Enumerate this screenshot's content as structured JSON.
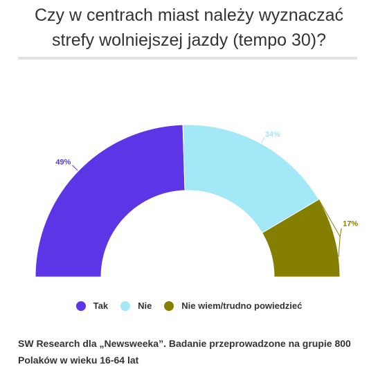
{
  "title_line1": "Czy w centrach miast należy wyznaczać",
  "title_line2": "strefy wolniejszej jazdy (tempo 30)?",
  "chart_data": {
    "type": "pie",
    "subtype": "semi-donut",
    "labels": [
      "Tak",
      "Nie",
      "Nie wiem/trudno powiedzieć"
    ],
    "values": [
      49,
      34,
      17
    ],
    "value_labels": [
      "49%",
      "34%",
      "17%"
    ],
    "colors": [
      "#5b35e6",
      "#a3e8f6",
      "#857f00"
    ],
    "label_colors": [
      "#5b35e6",
      "#a3e8f6",
      "#857f00"
    ],
    "legend_position": "bottom"
  },
  "legend": [
    "Tak",
    "Nie",
    "Nie wiem/trudno powiedzieć"
  ],
  "source": "SW Research dla „Newsweeka”. Badanie przeprowadzone na grupie 800 Polaków w wieku 16-64 lat"
}
